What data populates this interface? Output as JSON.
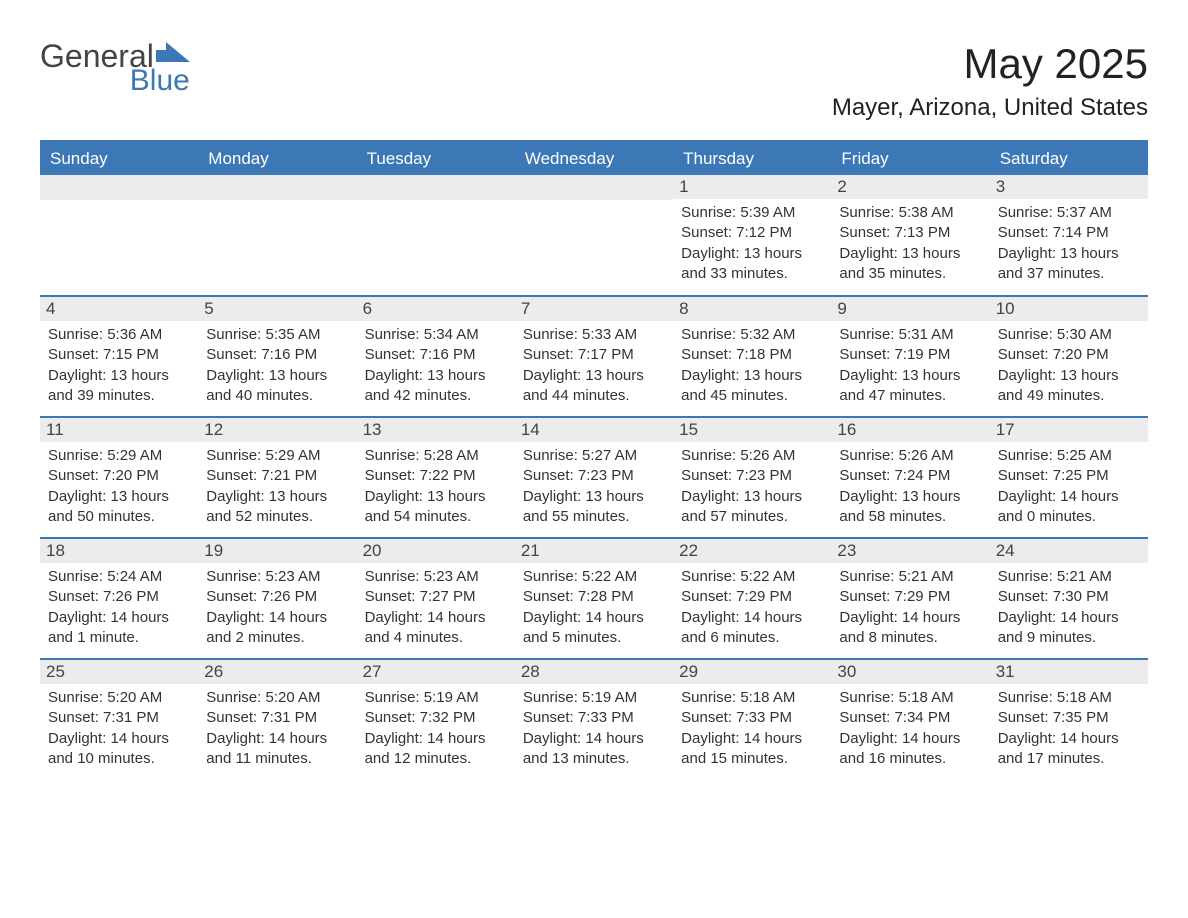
{
  "logo": {
    "general": "General",
    "blue": "Blue"
  },
  "title": "May 2025",
  "location": "Mayer, Arizona, United States",
  "day_names": [
    "Sunday",
    "Monday",
    "Tuesday",
    "Wednesday",
    "Thursday",
    "Friday",
    "Saturday"
  ],
  "colors": {
    "header_bg": "#3b78b5",
    "daynum_bg": "#ececec",
    "text": "#333333",
    "title": "#222222",
    "background": "#ffffff"
  },
  "font": {
    "family": "Arial",
    "day_name_size": 17,
    "info_size": 15,
    "title_size": 42,
    "location_size": 24
  },
  "weeks": [
    [
      {
        "day": "",
        "sunrise": "",
        "sunset": "",
        "daylight": ""
      },
      {
        "day": "",
        "sunrise": "",
        "sunset": "",
        "daylight": ""
      },
      {
        "day": "",
        "sunrise": "",
        "sunset": "",
        "daylight": ""
      },
      {
        "day": "",
        "sunrise": "",
        "sunset": "",
        "daylight": ""
      },
      {
        "day": "1",
        "sunrise": "Sunrise: 5:39 AM",
        "sunset": "Sunset: 7:12 PM",
        "daylight": "Daylight: 13 hours and 33 minutes."
      },
      {
        "day": "2",
        "sunrise": "Sunrise: 5:38 AM",
        "sunset": "Sunset: 7:13 PM",
        "daylight": "Daylight: 13 hours and 35 minutes."
      },
      {
        "day": "3",
        "sunrise": "Sunrise: 5:37 AM",
        "sunset": "Sunset: 7:14 PM",
        "daylight": "Daylight: 13 hours and 37 minutes."
      }
    ],
    [
      {
        "day": "4",
        "sunrise": "Sunrise: 5:36 AM",
        "sunset": "Sunset: 7:15 PM",
        "daylight": "Daylight: 13 hours and 39 minutes."
      },
      {
        "day": "5",
        "sunrise": "Sunrise: 5:35 AM",
        "sunset": "Sunset: 7:16 PM",
        "daylight": "Daylight: 13 hours and 40 minutes."
      },
      {
        "day": "6",
        "sunrise": "Sunrise: 5:34 AM",
        "sunset": "Sunset: 7:16 PM",
        "daylight": "Daylight: 13 hours and 42 minutes."
      },
      {
        "day": "7",
        "sunrise": "Sunrise: 5:33 AM",
        "sunset": "Sunset: 7:17 PM",
        "daylight": "Daylight: 13 hours and 44 minutes."
      },
      {
        "day": "8",
        "sunrise": "Sunrise: 5:32 AM",
        "sunset": "Sunset: 7:18 PM",
        "daylight": "Daylight: 13 hours and 45 minutes."
      },
      {
        "day": "9",
        "sunrise": "Sunrise: 5:31 AM",
        "sunset": "Sunset: 7:19 PM",
        "daylight": "Daylight: 13 hours and 47 minutes."
      },
      {
        "day": "10",
        "sunrise": "Sunrise: 5:30 AM",
        "sunset": "Sunset: 7:20 PM",
        "daylight": "Daylight: 13 hours and 49 minutes."
      }
    ],
    [
      {
        "day": "11",
        "sunrise": "Sunrise: 5:29 AM",
        "sunset": "Sunset: 7:20 PM",
        "daylight": "Daylight: 13 hours and 50 minutes."
      },
      {
        "day": "12",
        "sunrise": "Sunrise: 5:29 AM",
        "sunset": "Sunset: 7:21 PM",
        "daylight": "Daylight: 13 hours and 52 minutes."
      },
      {
        "day": "13",
        "sunrise": "Sunrise: 5:28 AM",
        "sunset": "Sunset: 7:22 PM",
        "daylight": "Daylight: 13 hours and 54 minutes."
      },
      {
        "day": "14",
        "sunrise": "Sunrise: 5:27 AM",
        "sunset": "Sunset: 7:23 PM",
        "daylight": "Daylight: 13 hours and 55 minutes."
      },
      {
        "day": "15",
        "sunrise": "Sunrise: 5:26 AM",
        "sunset": "Sunset: 7:23 PM",
        "daylight": "Daylight: 13 hours and 57 minutes."
      },
      {
        "day": "16",
        "sunrise": "Sunrise: 5:26 AM",
        "sunset": "Sunset: 7:24 PM",
        "daylight": "Daylight: 13 hours and 58 minutes."
      },
      {
        "day": "17",
        "sunrise": "Sunrise: 5:25 AM",
        "sunset": "Sunset: 7:25 PM",
        "daylight": "Daylight: 14 hours and 0 minutes."
      }
    ],
    [
      {
        "day": "18",
        "sunrise": "Sunrise: 5:24 AM",
        "sunset": "Sunset: 7:26 PM",
        "daylight": "Daylight: 14 hours and 1 minute."
      },
      {
        "day": "19",
        "sunrise": "Sunrise: 5:23 AM",
        "sunset": "Sunset: 7:26 PM",
        "daylight": "Daylight: 14 hours and 2 minutes."
      },
      {
        "day": "20",
        "sunrise": "Sunrise: 5:23 AM",
        "sunset": "Sunset: 7:27 PM",
        "daylight": "Daylight: 14 hours and 4 minutes."
      },
      {
        "day": "21",
        "sunrise": "Sunrise: 5:22 AM",
        "sunset": "Sunset: 7:28 PM",
        "daylight": "Daylight: 14 hours and 5 minutes."
      },
      {
        "day": "22",
        "sunrise": "Sunrise: 5:22 AM",
        "sunset": "Sunset: 7:29 PM",
        "daylight": "Daylight: 14 hours and 6 minutes."
      },
      {
        "day": "23",
        "sunrise": "Sunrise: 5:21 AM",
        "sunset": "Sunset: 7:29 PM",
        "daylight": "Daylight: 14 hours and 8 minutes."
      },
      {
        "day": "24",
        "sunrise": "Sunrise: 5:21 AM",
        "sunset": "Sunset: 7:30 PM",
        "daylight": "Daylight: 14 hours and 9 minutes."
      }
    ],
    [
      {
        "day": "25",
        "sunrise": "Sunrise: 5:20 AM",
        "sunset": "Sunset: 7:31 PM",
        "daylight": "Daylight: 14 hours and 10 minutes."
      },
      {
        "day": "26",
        "sunrise": "Sunrise: 5:20 AM",
        "sunset": "Sunset: 7:31 PM",
        "daylight": "Daylight: 14 hours and 11 minutes."
      },
      {
        "day": "27",
        "sunrise": "Sunrise: 5:19 AM",
        "sunset": "Sunset: 7:32 PM",
        "daylight": "Daylight: 14 hours and 12 minutes."
      },
      {
        "day": "28",
        "sunrise": "Sunrise: 5:19 AM",
        "sunset": "Sunset: 7:33 PM",
        "daylight": "Daylight: 14 hours and 13 minutes."
      },
      {
        "day": "29",
        "sunrise": "Sunrise: 5:18 AM",
        "sunset": "Sunset: 7:33 PM",
        "daylight": "Daylight: 14 hours and 15 minutes."
      },
      {
        "day": "30",
        "sunrise": "Sunrise: 5:18 AM",
        "sunset": "Sunset: 7:34 PM",
        "daylight": "Daylight: 14 hours and 16 minutes."
      },
      {
        "day": "31",
        "sunrise": "Sunrise: 5:18 AM",
        "sunset": "Sunset: 7:35 PM",
        "daylight": "Daylight: 14 hours and 17 minutes."
      }
    ]
  ]
}
